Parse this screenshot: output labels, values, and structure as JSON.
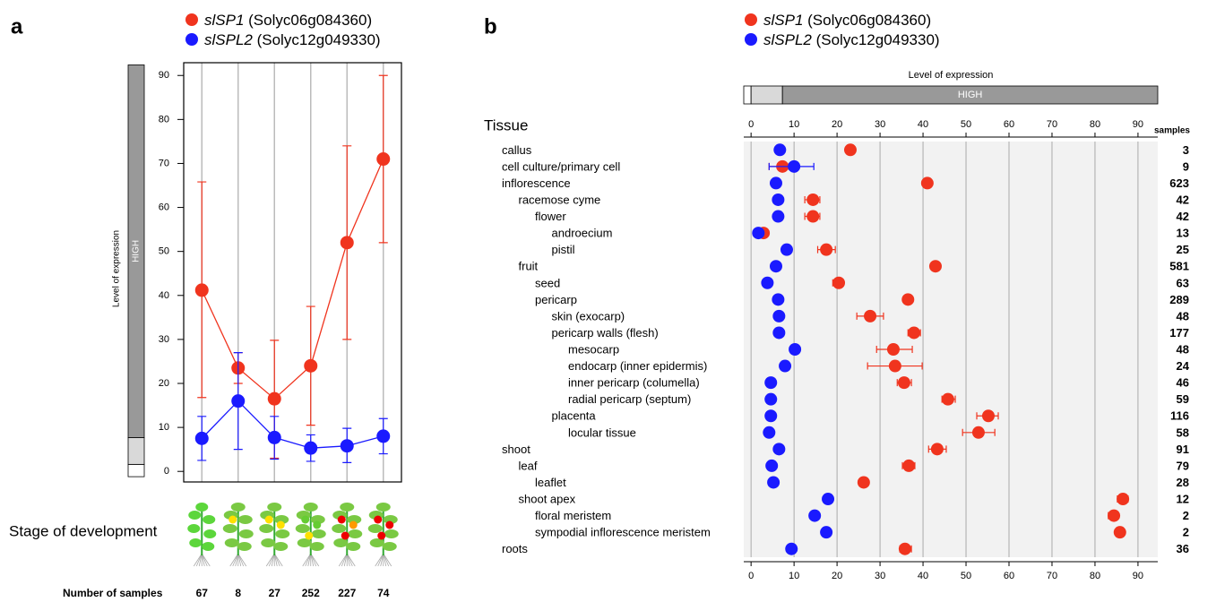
{
  "chart_data": [
    {
      "panel": "a",
      "type": "line",
      "ylabel": "Level of expression",
      "expression_bar": {
        "label": "HIGH",
        "breaks": [
          -1.2,
          1.6,
          7.7,
          92.4
        ]
      },
      "ylim": [
        -2.4,
        92.9
      ],
      "yticks": [
        0,
        10,
        20,
        30,
        40,
        50,
        60,
        70,
        80,
        90
      ],
      "categories": [
        null,
        null,
        null,
        null,
        null,
        null
      ],
      "stage_label": "Stage of development",
      "samples_label": "Number of samples",
      "samples": [
        67,
        8,
        27,
        252,
        227,
        74
      ],
      "series": [
        {
          "name": "slSP1 (Solyc06g084360)",
          "color": "#f0341e",
          "values": [
            41.2,
            23.5,
            16.5,
            24,
            52,
            71
          ],
          "lower": [
            16.8,
            20,
            3,
            10.5,
            30,
            52
          ],
          "upper": [
            65.8,
            27,
            29.8,
            37.5,
            74,
            90
          ]
        },
        {
          "name": "slSPL2 (Solyc12g049330)",
          "color": "#1a1aff",
          "values": [
            7.5,
            16,
            7.7,
            5.3,
            5.8,
            8
          ],
          "lower": [
            2.5,
            5,
            2.8,
            2.3,
            2,
            4
          ],
          "upper": [
            12.5,
            27,
            12.5,
            8.3,
            9.8,
            12
          ]
        }
      ]
    },
    {
      "panel": "b",
      "type": "dot",
      "xlabel": "Level of expression",
      "expression_bar": {
        "label": "HIGH",
        "breaks": [
          -1.7,
          0,
          7.3,
          94.6
        ]
      },
      "xlim": [
        -1.7,
        94.6
      ],
      "xticks": [
        0,
        10,
        20,
        30,
        40,
        50,
        60,
        70,
        80,
        90
      ],
      "category_label": "Tissue",
      "samples_label": "samples",
      "categories": [
        "callus",
        "cell culture/primary cell",
        "inflorescence",
        "racemose cyme",
        "flower",
        "androecium",
        "pistil",
        "fruit",
        "seed",
        "pericarp",
        "skin (exocarp)",
        "pericarp walls (flesh)",
        "mesocarp",
        "endocarp (inner epidermis)",
        "inner pericarp (columella)",
        "radial pericarp (septum)",
        "placenta",
        "locular tissue",
        "shoot",
        "leaf",
        "leaflet",
        "shoot apex",
        "floral meristem",
        "sympodial inflorescence meristem",
        "roots"
      ],
      "levels": [
        0,
        0,
        0,
        1,
        2,
        3,
        3,
        1,
        2,
        2,
        3,
        3,
        4,
        4,
        4,
        4,
        3,
        4,
        0,
        1,
        2,
        1,
        2,
        2,
        0
      ],
      "samples": [
        3,
        9,
        623,
        42,
        42,
        13,
        25,
        581,
        63,
        289,
        48,
        177,
        48,
        24,
        46,
        59,
        116,
        58,
        91,
        79,
        28,
        12,
        2,
        2,
        36
      ],
      "series": [
        {
          "name": "slSP1 (Solyc06g084360)",
          "color": "#f0341e",
          "values": [
            23.1,
            7.3,
            41,
            14.4,
            14.4,
            2.9,
            17.5,
            42.9,
            20.4,
            36.5,
            27.7,
            37.9,
            33.1,
            33.5,
            35.6,
            45.8,
            55.2,
            52.9,
            43.3,
            36.7,
            26.2,
            86.5,
            84.4,
            85.8,
            35.8
          ],
          "lower": [
            null,
            4.2,
            null,
            12.5,
            12.5,
            null,
            15.5,
            null,
            19,
            null,
            24.6,
            36.5,
            29.2,
            27.1,
            34,
            44.4,
            52.5,
            49.2,
            41.3,
            35.2,
            null,
            85.2,
            83.1,
            85,
            34.6
          ],
          "upper": [
            null,
            8.8,
            null,
            16,
            16,
            null,
            19.6,
            null,
            21.5,
            null,
            30.8,
            39.4,
            37.5,
            39.8,
            37.3,
            47.5,
            57.5,
            56.7,
            45.4,
            38.1,
            null,
            87.7,
            85.4,
            86.7,
            37.3
          ]
        },
        {
          "name": "slSPL2 (Solyc12g049330)",
          "color": "#1a1aff",
          "values": [
            6.7,
            10,
            5.8,
            6.3,
            6.3,
            1.7,
            8.3,
            5.8,
            3.8,
            6.3,
            6.5,
            6.5,
            10.2,
            7.9,
            4.6,
            4.6,
            4.6,
            4.2,
            6.5,
            4.8,
            5.2,
            17.9,
            14.8,
            17.5,
            9.4
          ],
          "lower": [
            null,
            4.2,
            null,
            null,
            null,
            null,
            null,
            null,
            null,
            null,
            null,
            null,
            null,
            null,
            null,
            null,
            null,
            null,
            null,
            null,
            null,
            null,
            null,
            null,
            null
          ],
          "upper": [
            null,
            14.6,
            null,
            null,
            null,
            null,
            null,
            null,
            null,
            null,
            null,
            null,
            null,
            null,
            null,
            null,
            null,
            null,
            null,
            null,
            null,
            null,
            null,
            null,
            null
          ]
        }
      ]
    }
  ]
}
